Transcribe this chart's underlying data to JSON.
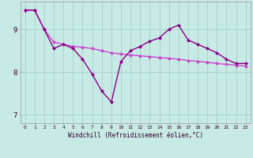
{
  "background_color": "#c8eae4",
  "grid_color": "#a8d4cc",
  "line1_color": "#cc44cc",
  "line2_color": "#880088",
  "xlabel": "Windchill (Refroidissement éolien,°C)",
  "ylim": [
    6.8,
    9.65
  ],
  "xlim": [
    -0.5,
    23.5
  ],
  "yticks": [
    7,
    8,
    9
  ],
  "xticks": [
    0,
    1,
    2,
    3,
    4,
    5,
    6,
    7,
    8,
    9,
    10,
    11,
    12,
    13,
    14,
    15,
    16,
    17,
    18,
    19,
    20,
    21,
    22,
    23
  ],
  "line1_x": [
    0,
    1,
    2,
    3,
    4,
    5,
    6,
    7,
    8,
    9,
    10,
    11,
    12,
    13,
    14,
    15,
    16,
    17,
    18,
    19,
    20,
    21,
    22,
    23
  ],
  "line1_y": [
    9.45,
    9.45,
    9.0,
    8.7,
    8.65,
    8.6,
    8.58,
    8.55,
    8.5,
    8.45,
    8.42,
    8.4,
    8.38,
    8.36,
    8.34,
    8.32,
    8.3,
    8.27,
    8.25,
    8.23,
    8.2,
    8.18,
    8.16,
    8.14
  ],
  "line2_x": [
    0,
    1,
    2,
    3,
    4,
    5,
    6,
    7,
    8,
    9,
    10,
    11,
    12,
    13,
    14,
    15,
    16,
    17,
    18,
    19,
    20,
    21,
    22,
    23
  ],
  "line2_y": [
    9.45,
    9.45,
    9.0,
    8.55,
    8.65,
    8.55,
    8.3,
    7.95,
    7.55,
    7.3,
    8.25,
    8.5,
    8.6,
    8.72,
    8.8,
    9.0,
    9.1,
    8.75,
    8.65,
    8.55,
    8.45,
    8.3,
    8.2,
    8.2
  ],
  "marker": "D",
  "markersize": 2.0,
  "linewidth": 1.0
}
